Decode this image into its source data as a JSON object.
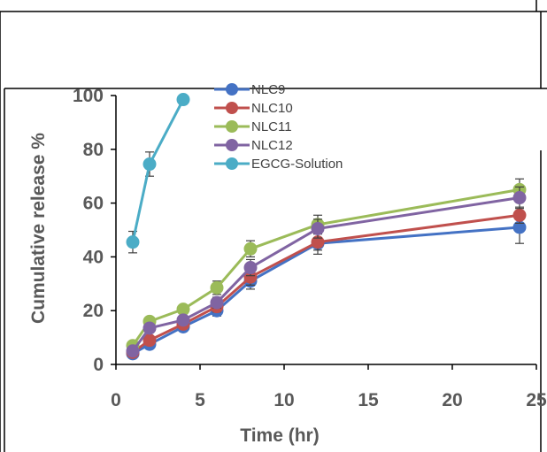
{
  "chart_data": {
    "type": "line",
    "xlabel": "Time (hr)",
    "ylabel": "Cumulative release %",
    "xlim": [
      0,
      25
    ],
    "ylim": [
      0,
      100
    ],
    "x_ticks": [
      0,
      5,
      10,
      15,
      20,
      25
    ],
    "y_ticks": [
      0,
      20,
      40,
      60,
      80,
      100
    ],
    "x_tick_labels": [
      "0",
      "5",
      "10",
      "15",
      "20",
      "25"
    ],
    "y_tick_labels": [
      "0",
      "20",
      "40",
      "60",
      "80",
      "100"
    ],
    "grid": false,
    "legend_position": "top-center",
    "series": [
      {
        "name": "NLC9",
        "color": "#4472C4",
        "x": [
          1,
          2,
          4,
          6,
          8,
          12,
          24
        ],
        "y": [
          4,
          7.5,
          14,
          20,
          31,
          45,
          51
        ],
        "err": [
          1,
          1.5,
          1.5,
          2,
          3,
          4,
          6
        ]
      },
      {
        "name": "NLC10",
        "color": "#C0504D",
        "x": [
          1,
          2,
          4,
          6,
          8,
          12,
          24
        ],
        "y": [
          4.5,
          9,
          15,
          21.5,
          32.5,
          45.5,
          55.5
        ],
        "err": [
          1,
          1.5,
          1.5,
          2,
          3,
          3,
          3
        ]
      },
      {
        "name": "NLC11",
        "color": "#9BBB59",
        "x": [
          1,
          2,
          4,
          6,
          8,
          12,
          24
        ],
        "y": [
          7,
          16,
          20.5,
          28.5,
          43,
          52,
          65
        ],
        "err": [
          1,
          1.5,
          1.5,
          2.5,
          3,
          3.5,
          4
        ]
      },
      {
        "name": "NLC12",
        "color": "#8064A2",
        "x": [
          1,
          2,
          4,
          6,
          8,
          12,
          24
        ],
        "y": [
          5,
          13.5,
          16.5,
          23,
          36,
          50.5,
          62
        ],
        "err": [
          1,
          1.5,
          1.5,
          2,
          3,
          3.5,
          4
        ]
      },
      {
        "name": "EGCG-Solution",
        "color": "#4BACC6",
        "x": [
          1,
          2,
          4
        ],
        "y": [
          45.5,
          74.5,
          98.5
        ],
        "err": [
          4,
          4.5,
          1
        ]
      }
    ]
  }
}
